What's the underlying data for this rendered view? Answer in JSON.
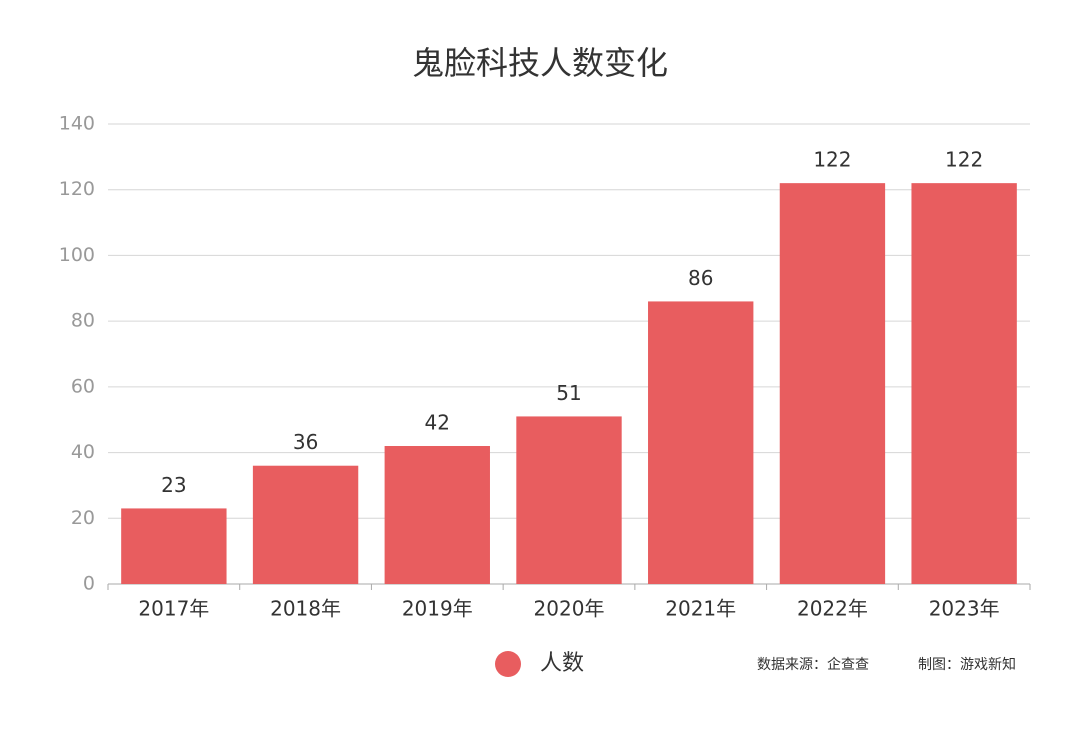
{
  "chart_data": {
    "type": "bar",
    "title": "鬼脸科技人数变化",
    "categories": [
      "2017年",
      "2018年",
      "2019年",
      "2020年",
      "2021年",
      "2022年",
      "2023年"
    ],
    "series": [
      {
        "name": "人数",
        "color": "#e85d5f",
        "values": [
          23,
          36,
          42,
          51,
          86,
          122,
          122
        ]
      }
    ],
    "ylim": [
      0,
      140
    ],
    "yticks": [
      0,
      20,
      40,
      60,
      80,
      100,
      120,
      140
    ],
    "grid": true,
    "source": "数据来源：企查查",
    "credit": "制图：游戏新知"
  }
}
